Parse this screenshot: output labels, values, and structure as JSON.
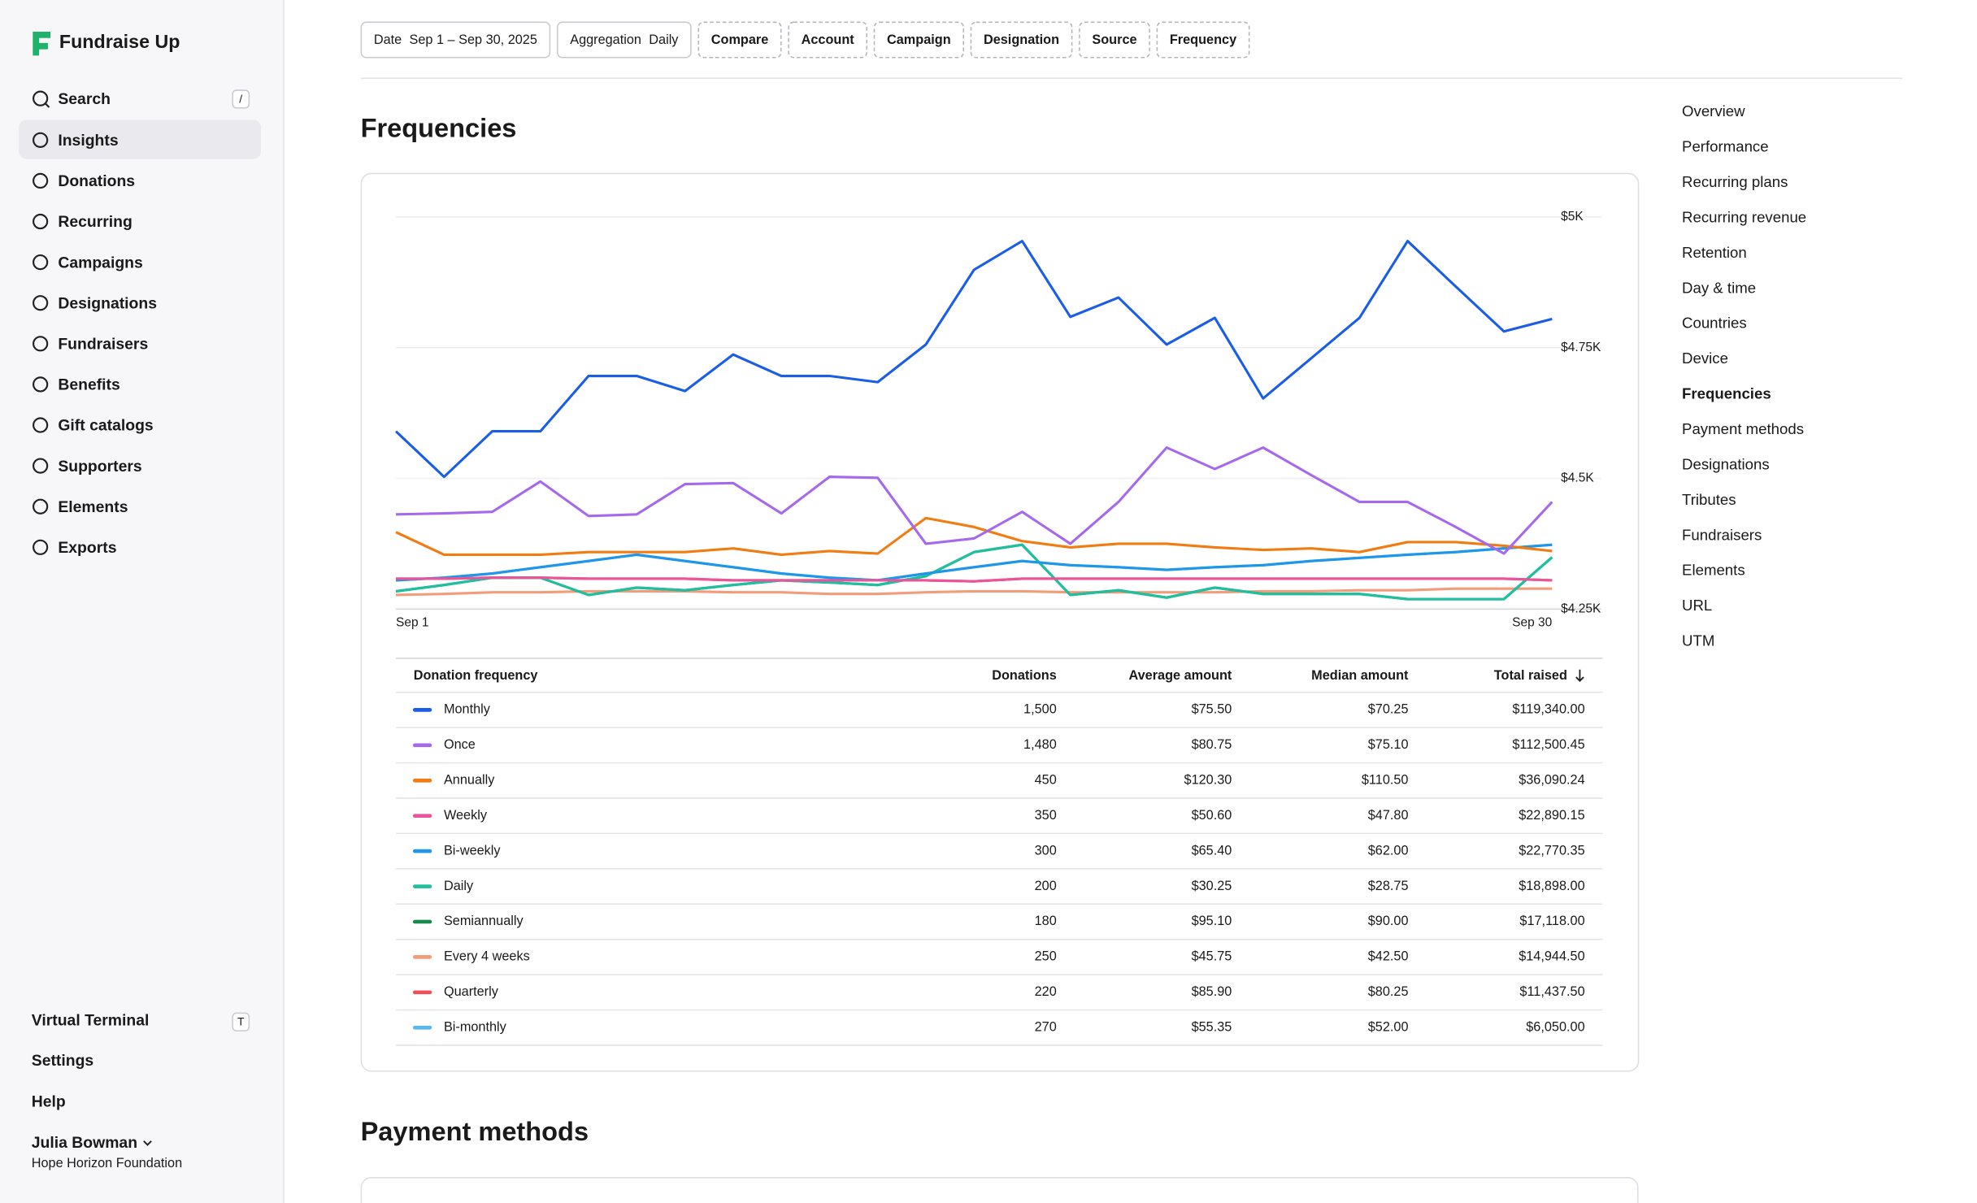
{
  "brand": "Fundraise Up",
  "sidebar": {
    "search": {
      "label": "Search",
      "key": "/"
    },
    "nav": [
      "Insights",
      "Donations",
      "Recurring",
      "Campaigns",
      "Designations",
      "Fundraisers",
      "Benefits",
      "Gift catalogs",
      "Supporters",
      "Elements",
      "Exports"
    ],
    "active": 0,
    "footer": {
      "terminal": "Virtual Terminal",
      "terminal_key": "T",
      "links": [
        "Settings",
        "Help"
      ],
      "user": "Julia Bowman",
      "org": "Hope Horizon Foundation"
    }
  },
  "filters": [
    {
      "label": "Date",
      "value": "Sep 1 – Sep 30, 2025"
    },
    {
      "label": "Aggregation",
      "value": "Daily"
    },
    {
      "label": "Compare"
    },
    {
      "label": "Account"
    },
    {
      "label": "Campaign"
    },
    {
      "label": "Designation"
    },
    {
      "label": "Source"
    },
    {
      "label": "Frequency"
    }
  ],
  "section_title": "Frequencies",
  "chart_data": {
    "type": "line",
    "categories": [
      "Sep 1",
      null,
      null,
      null,
      null,
      null,
      null,
      null,
      null,
      null,
      null,
      null,
      null,
      null,
      null,
      null,
      null,
      null,
      null,
      null,
      null,
      null,
      null,
      null,
      "Sep 30"
    ],
    "ylim": [
      4250,
      5000
    ],
    "yticks": [
      {
        "value": 4250,
        "label": "$4.25K"
      },
      {
        "value": 4500,
        "label": "$4.5K"
      },
      {
        "value": 4750,
        "label": "$4.75K"
      },
      {
        "value": 5000,
        "label": "$5K"
      }
    ],
    "grid": true,
    "series": [
      {
        "name": "Monthly",
        "color": "#1a5de6",
        "values": [
          4590,
          4503,
          4590,
          4590,
          4696,
          4696,
          4667,
          4737,
          4696,
          4696,
          4684,
          4756,
          4899,
          4954,
          4809,
          4846,
          4756,
          4807,
          4653,
          4730,
          4807,
          4954,
          4867,
          4781,
          4805
        ]
      },
      {
        "name": "Once",
        "color": "#a469ec",
        "values": [
          4431,
          4433,
          4436,
          4494,
          4428,
          4431,
          4489,
          4491,
          4433,
          4503,
          4501,
          4375,
          4385,
          4436,
          4375,
          4455,
          4559,
          4518,
          4559,
          4506,
          4455,
          4455,
          4407,
          4356,
          4455
        ]
      },
      {
        "name": "Annually",
        "color": "#f07c12",
        "values": [
          4397,
          4354,
          4354,
          4354,
          4359,
          4359,
          4359,
          4366,
          4354,
          4361,
          4356,
          4424,
          4407,
          4380,
          4368,
          4375,
          4375,
          4368,
          4363,
          4366,
          4359,
          4378,
          4378,
          4371,
          4361
        ]
      },
      {
        "name": "Weekly",
        "color": "#e8559b",
        "values": [
          4308,
          4308,
          4310,
          4310,
          4308,
          4308,
          4308,
          4305,
          4305,
          4305,
          4305,
          4305,
          4303,
          4308,
          4308,
          4308,
          4308,
          4308,
          4308,
          4308,
          4308,
          4308,
          4308,
          4308,
          4305
        ]
      },
      {
        "name": "Bi-weekly",
        "color": "#1e96ea",
        "values": [
          4305,
          4310,
          4318,
          4330,
          4342,
          4354,
          4342,
          4330,
          4318,
          4310,
          4305,
          4318,
          4330,
          4342,
          4334,
          4330,
          4325,
          4330,
          4334,
          4342,
          4348,
          4354,
          4359,
          4366,
          4373
        ]
      },
      {
        "name": "Daily",
        "color": "#1fbfa0",
        "values": [
          4284,
          4296,
          4310,
          4310,
          4277,
          4291,
          4286,
          4296,
          4305,
          4301,
          4296,
          4313,
          4359,
          4373,
          4277,
          4286,
          4272,
          4291,
          4279,
          4279,
          4279,
          4269,
          4269,
          4269,
          4349
        ]
      },
      {
        "name": "Semiannually",
        "color": "#17894a",
        "values": [
          4284,
          4296,
          4310,
          4310,
          4277,
          4291,
          4286,
          4296,
          4305,
          4301,
          4296,
          4313,
          4359,
          4373,
          4277,
          4286,
          4272,
          4291,
          4279,
          4279,
          4279,
          4269,
          4269,
          4269,
          4349
        ]
      },
      {
        "name": "Every 4 weeks",
        "color": "#f39c7c",
        "values": [
          4277,
          4279,
          4282,
          4282,
          4284,
          4284,
          4284,
          4282,
          4282,
          4279,
          4279,
          4282,
          4284,
          4284,
          4282,
          4282,
          4282,
          4282,
          4284,
          4284,
          4286,
          4286,
          4289,
          4289,
          4289
        ]
      },
      {
        "name": "Quarterly",
        "color": "#ef4f5a",
        "values": [
          4308,
          4308,
          4310,
          4310,
          4308,
          4308,
          4308,
          4305,
          4305,
          4305,
          4305,
          4305,
          4303,
          4308,
          4308,
          4308,
          4308,
          4308,
          4308,
          4308,
          4308,
          4308,
          4308,
          4308,
          4305
        ]
      },
      {
        "name": "Bi-monthly",
        "color": "#5ab8ee",
        "values": [
          4305,
          4310,
          4318,
          4330,
          4342,
          4354,
          4342,
          4330,
          4318,
          4310,
          4305,
          4318,
          4330,
          4342,
          4334,
          4330,
          4325,
          4330,
          4334,
          4342,
          4348,
          4354,
          4359,
          4366,
          4373
        ]
      }
    ]
  },
  "table": {
    "columns": [
      "Donation frequency",
      "Donations",
      "Average amount",
      "Median amount",
      "Total raised"
    ],
    "rows": [
      [
        "1,500",
        "$75.50",
        "$70.25",
        "$119,340.00"
      ],
      [
        "1,480",
        "$80.75",
        "$75.10",
        "$112,500.45"
      ],
      [
        "450",
        "$120.30",
        "$110.50",
        "$36,090.24"
      ],
      [
        "350",
        "$50.60",
        "$47.80",
        "$22,890.15"
      ],
      [
        "300",
        "$65.40",
        "$62.00",
        "$22,770.35"
      ],
      [
        "200",
        "$30.25",
        "$28.75",
        "$18,898.00"
      ],
      [
        "180",
        "$95.10",
        "$90.00",
        "$17,118.00"
      ],
      [
        "250",
        "$45.75",
        "$42.50",
        "$14,944.50"
      ],
      [
        "220",
        "$85.90",
        "$80.25",
        "$11,437.50"
      ],
      [
        "270",
        "$55.35",
        "$52.00",
        "$6,050.00"
      ]
    ]
  },
  "toc": {
    "items": [
      "Overview",
      "Performance",
      "Recurring plans",
      "Recurring revenue",
      "Retention",
      "Day & time",
      "Countries",
      "Device",
      "Frequencies",
      "Payment methods",
      "Designations",
      "Tributes",
      "Fundraisers",
      "Elements",
      "URL",
      "UTM"
    ],
    "active": 8
  },
  "next_section_title": "Payment methods"
}
